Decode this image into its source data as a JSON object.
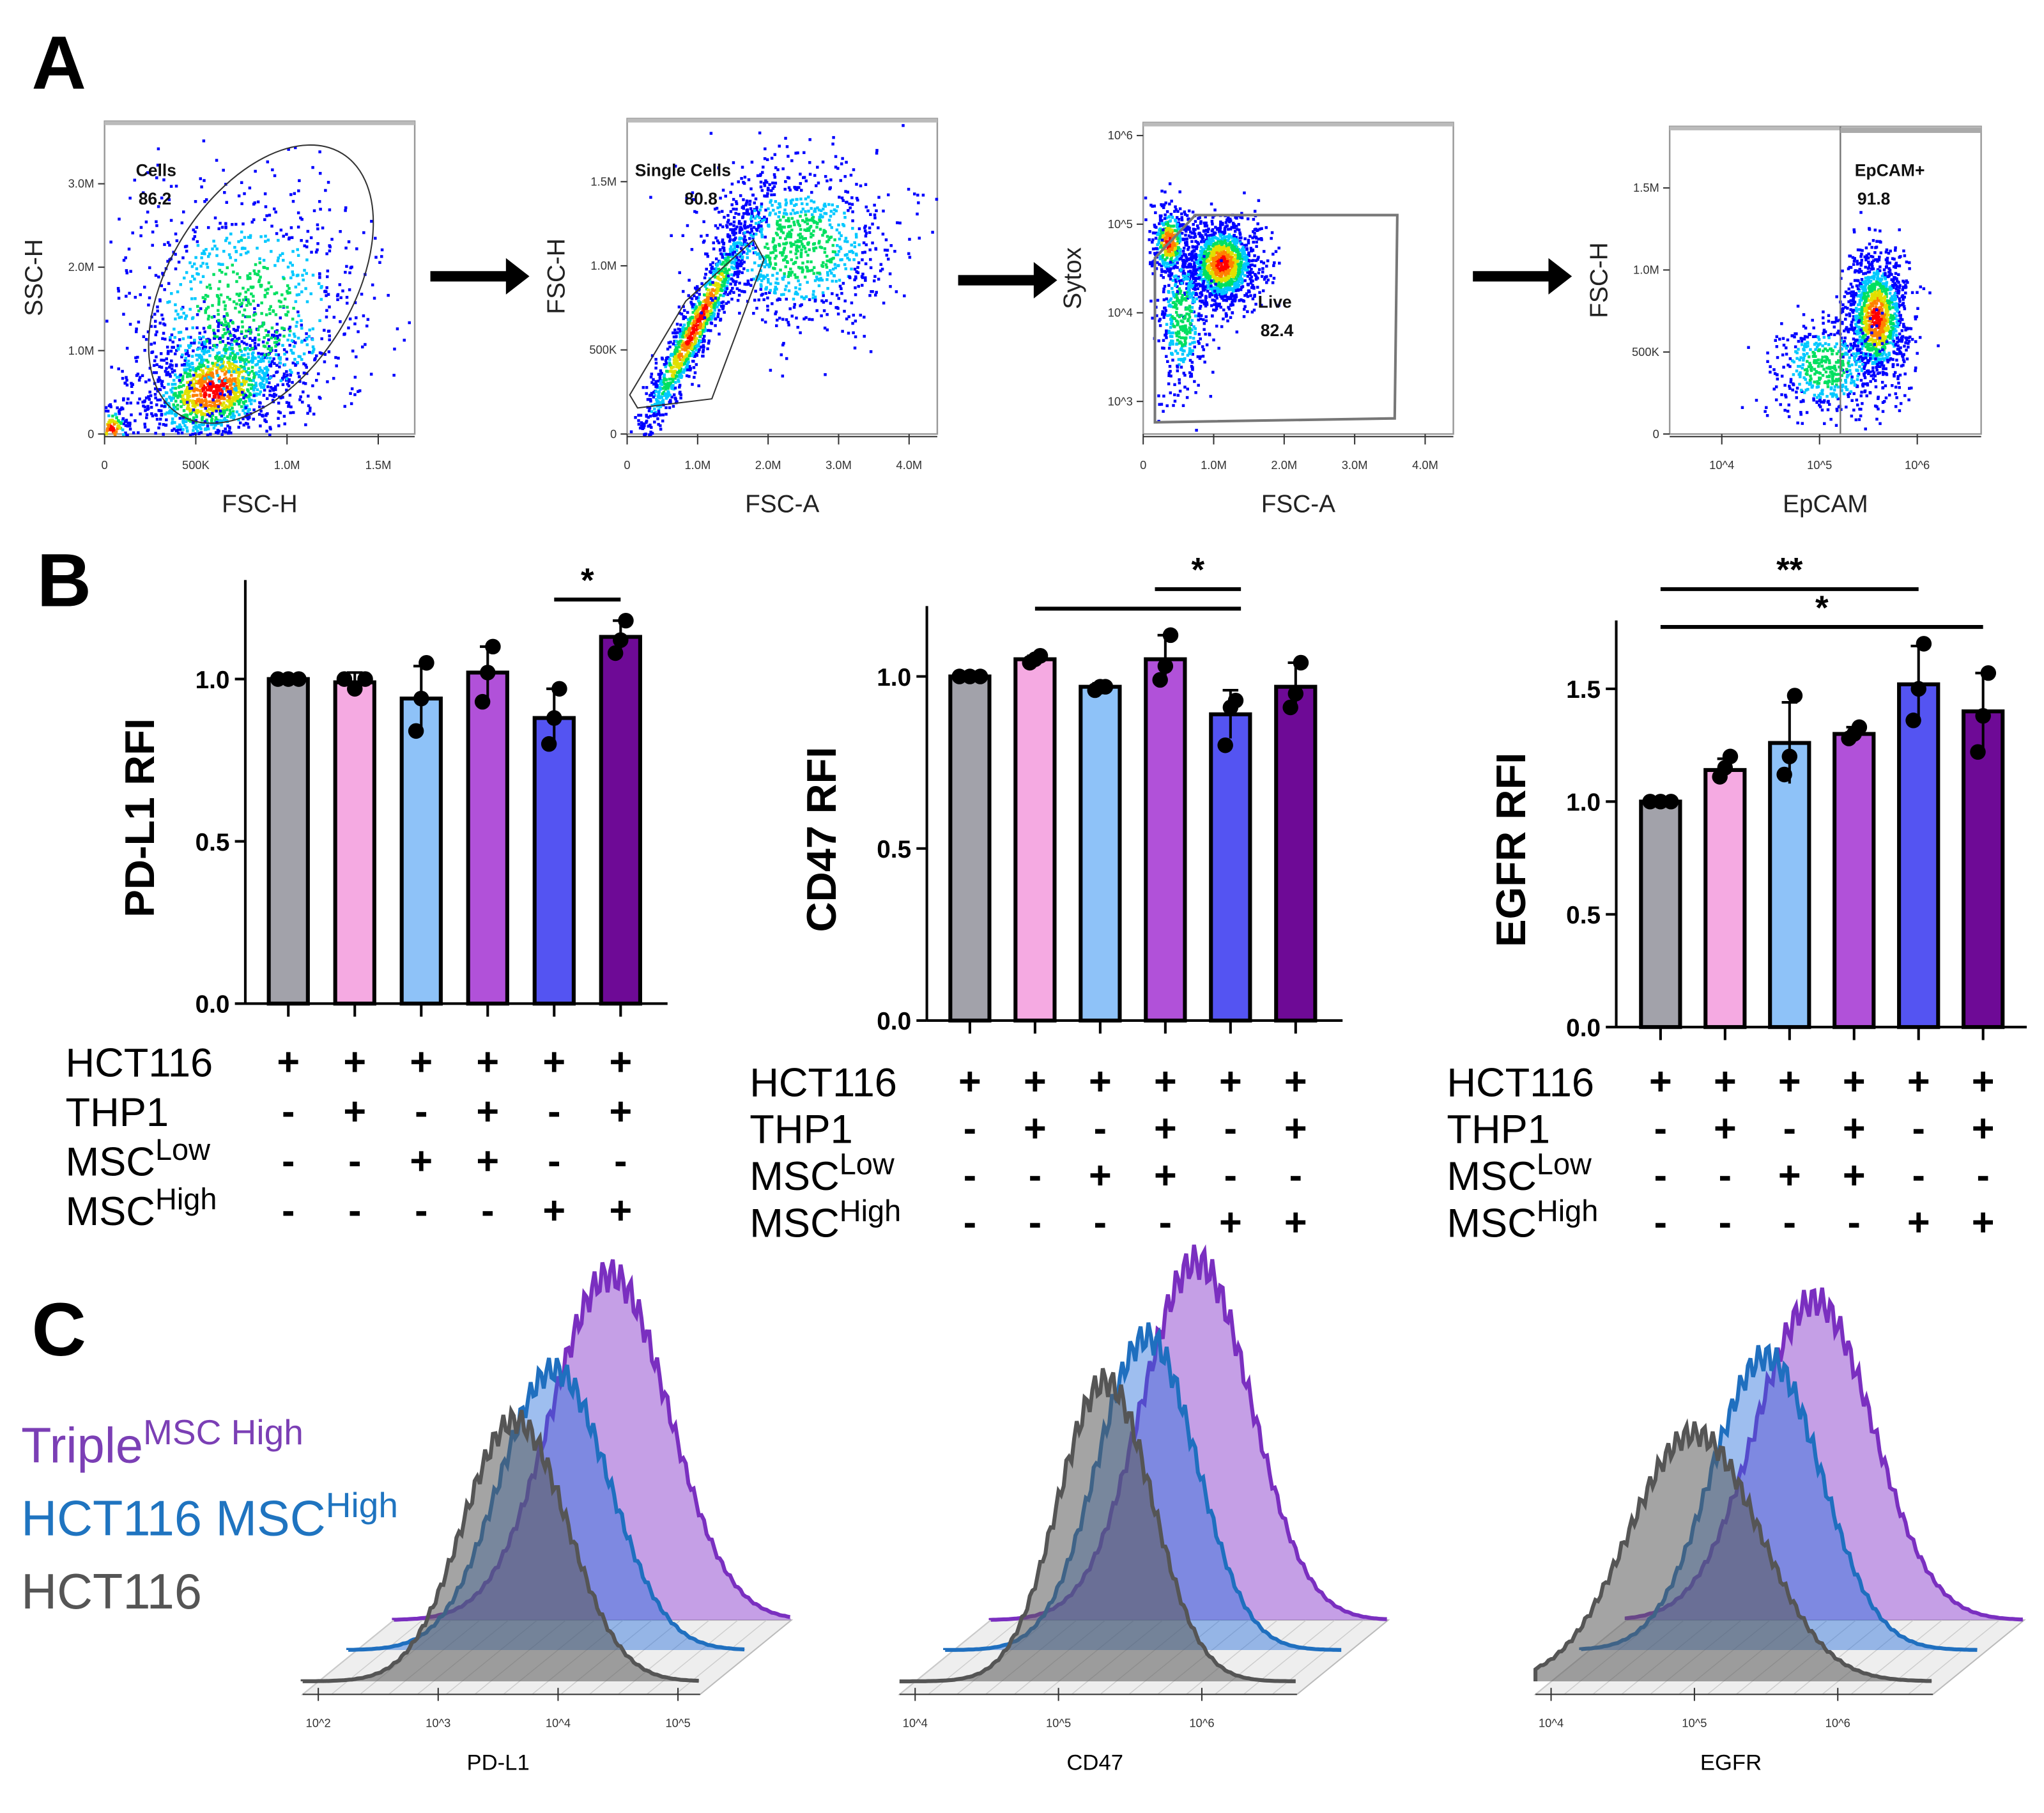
{
  "panels": {
    "a": "A",
    "b": "B",
    "c": "C"
  },
  "flow_plots": [
    {
      "gate": "Cells",
      "percent": "86.2",
      "xlabel": "FSC-H",
      "ylabel": "SSC-H",
      "xticks": [
        "0",
        "500K",
        "1.0M",
        "1.5M"
      ],
      "yticks": [
        "0",
        "1.0M",
        "2.0M",
        "3.0M"
      ]
    },
    {
      "gate": "Single Cells",
      "percent": "80.8",
      "xlabel": "FSC-A",
      "ylabel": "FSC-H",
      "xticks": [
        "0",
        "1.0M",
        "2.0M",
        "3.0M",
        "4.0M"
      ],
      "yticks": [
        "0",
        "500K",
        "1.0M",
        "1.5M"
      ]
    },
    {
      "gate": "Live",
      "percent": "82.4",
      "xlabel": "FSC-A",
      "ylabel": "Sytox",
      "xticks": [
        "0",
        "1.0M",
        "2.0M",
        "3.0M",
        "4.0M"
      ],
      "yticks": [
        "10^3",
        "10^4",
        "10^5",
        "10^6"
      ]
    },
    {
      "gate": "EpCAM+",
      "percent": "91.8",
      "xlabel": "EpCAM",
      "ylabel": "FSC-H",
      "xticks": [
        "10^4",
        "10^5",
        "10^6"
      ],
      "yticks": [
        "0",
        "500K",
        "1.0M",
        "1.5M"
      ]
    }
  ],
  "conditions": {
    "rows": [
      {
        "label": "HCT116",
        "sup": "",
        "values": [
          "+",
          "+",
          "+",
          "+",
          "+",
          "+"
        ]
      },
      {
        "label": "THP1",
        "sup": "",
        "values": [
          "-",
          "+",
          "-",
          "+",
          "-",
          "+"
        ]
      },
      {
        "label": "MSC",
        "sup": "Low",
        "values": [
          "-",
          "-",
          "+",
          "+",
          "-",
          "-"
        ]
      },
      {
        "label": "MSC",
        "sup": "High",
        "values": [
          "-",
          "-",
          "-",
          "-",
          "+",
          "+"
        ]
      }
    ]
  },
  "colors": [
    "#a2a2aa",
    "#f5aae2",
    "#8ec2f8",
    "#b151d9",
    "#5454f2",
    "#6e0a96"
  ],
  "chart_data": [
    {
      "type": "bar",
      "ylabel": "PD-L1 RFI",
      "ylim": [
        0,
        1.3
      ],
      "yticks": [
        "0.0",
        "0.5",
        "1.0"
      ],
      "ytick_values": [
        0,
        0.5,
        1.0
      ],
      "values": [
        1.0,
        0.99,
        0.94,
        1.02,
        0.88,
        1.13
      ],
      "points": [
        [
          1.0,
          1.0,
          1.0
        ],
        [
          1.0,
          0.97,
          1.0
        ],
        [
          0.84,
          0.94,
          1.05
        ],
        [
          0.93,
          1.02,
          1.1
        ],
        [
          0.8,
          0.88,
          0.97
        ],
        [
          1.08,
          1.12,
          1.18
        ]
      ],
      "errors": [
        0,
        0.03,
        0.1,
        0.08,
        0.09,
        0.05
      ],
      "significance": [
        {
          "from": 5,
          "to": 6,
          "label": "*"
        }
      ]
    },
    {
      "type": "bar",
      "ylabel": "CD47 RFI",
      "ylim": [
        0,
        1.25
      ],
      "yticks": [
        "0.0",
        "0.5",
        "1.0"
      ],
      "ytick_values": [
        0,
        0.5,
        1.0
      ],
      "values": [
        1.0,
        1.05,
        0.97,
        1.05,
        0.89,
        0.97
      ],
      "points": [
        [
          1.0,
          1.0,
          1.0
        ],
        [
          1.04,
          1.05,
          1.06
        ],
        [
          0.96,
          0.97,
          0.97
        ],
        [
          0.99,
          1.03,
          1.12
        ],
        [
          0.8,
          0.91,
          0.93
        ],
        [
          0.91,
          0.95,
          1.04
        ]
      ],
      "errors": [
        0,
        0.01,
        0.01,
        0.07,
        0.07,
        0.07
      ],
      "significance": [
        {
          "from": 4,
          "to": 5,
          "label": "*"
        },
        {
          "from": 2,
          "to": 5,
          "label": ""
        }
      ]
    },
    {
      "type": "bar",
      "ylabel": "EGFR RFI",
      "ylim": [
        0,
        1.8
      ],
      "yticks": [
        "0.0",
        "0.5",
        "1.0",
        "1.5"
      ],
      "ytick_values": [
        0,
        0.5,
        1.0,
        1.5
      ],
      "values": [
        1.0,
        1.14,
        1.26,
        1.3,
        1.52,
        1.4
      ],
      "points": [
        [
          1.0,
          1.0,
          1.0
        ],
        [
          1.11,
          1.15,
          1.2
        ],
        [
          1.12,
          1.2,
          1.47
        ],
        [
          1.28,
          1.3,
          1.33
        ],
        [
          1.36,
          1.5,
          1.7
        ],
        [
          1.22,
          1.38,
          1.57
        ]
      ],
      "errors": [
        0,
        0.05,
        0.18,
        0.03,
        0.17,
        0.17
      ],
      "significance": [
        {
          "from": 1,
          "to": 5,
          "label": "**"
        },
        {
          "from": 1,
          "to": 6,
          "label": "*"
        }
      ]
    }
  ],
  "histograms": {
    "legend": [
      {
        "label": "Triple",
        "sup": "MSC High",
        "color": "#7b3fb5"
      },
      {
        "label": "HCT116 MSC",
        "sup": "High",
        "color": "#1f74c0"
      },
      {
        "label": "HCT116",
        "sup": "",
        "color": "#555555"
      }
    ],
    "plots": [
      {
        "xlabel": "PD-L1",
        "xticks": [
          "10^2",
          "10^3",
          "10^4",
          "10^5"
        ]
      },
      {
        "xlabel": "CD47",
        "xticks": [
          "10^4",
          "10^5",
          "10^6"
        ]
      },
      {
        "xlabel": "EGFR",
        "xticks": [
          "10^4",
          "10^5",
          "10^6"
        ]
      }
    ]
  }
}
